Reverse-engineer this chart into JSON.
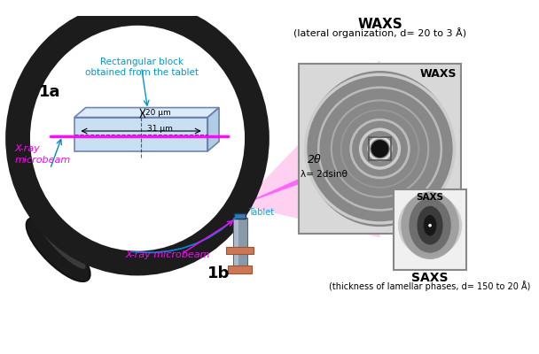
{
  "title_waxs": "WAXS",
  "subtitle_waxs": "(lateral organization, d= 20 to 3 Å)",
  "title_saxs": "SAXS",
  "subtitle_saxs": "(thickness of lamellar phases, d= 150 to 20 Å)",
  "label_1a": "1a",
  "label_1b": "1b",
  "label_rect_block": "Rectangular block\nobtained from the tablet",
  "label_20um": "20 μm",
  "label_31um": "31 μm",
  "label_xray_microbeam_top": "X-ray\nmicrobeam",
  "label_xray_microbeam_bottom": "X-ray microbeam",
  "label_tablet": "Tablet",
  "label_2theta": "2θ",
  "label_lambda": "λ= 2dsinθ",
  "label_waxs_img": "WAXS",
  "label_saxs_img": "SAXS",
  "bg_color": "#ffffff",
  "magenta": "#ff00ff",
  "magenta_dark": "#cc00cc",
  "cyan_blue": "#00aadd",
  "dark_gray": "#222222",
  "light_blue": "#c5dff0"
}
